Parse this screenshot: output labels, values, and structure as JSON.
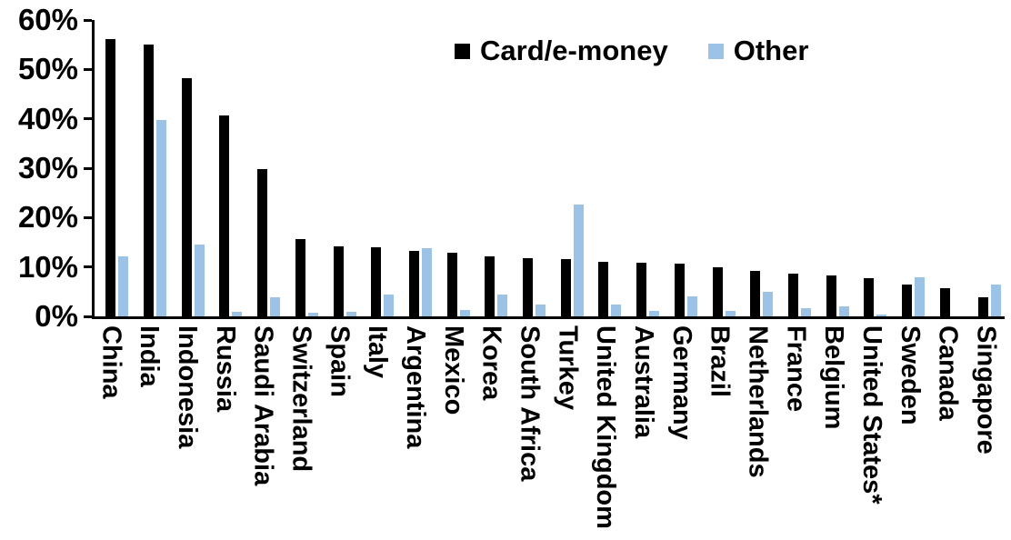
{
  "chart_data": {
    "type": "bar",
    "title": "",
    "categories": [
      "China",
      "India",
      "Indonesia",
      "Russia",
      "Saudi Arabia",
      "Switzerland",
      "Spain",
      "Italy",
      "Argentina",
      "Mexico",
      "Korea",
      "South Africa",
      "Turkey",
      "United Kingdom",
      "Australia",
      "Germany",
      "Brazil",
      "Netherlands",
      "France",
      "Belgium",
      "United States*",
      "Sweden",
      "Canada",
      "Singapore"
    ],
    "series": [
      {
        "name": "Card/e-money",
        "color": "#000000",
        "values": [
          56.2,
          55.0,
          48.2,
          40.6,
          29.9,
          15.6,
          14.2,
          14.0,
          13.3,
          12.9,
          12.2,
          11.8,
          11.6,
          11.1,
          10.8,
          10.6,
          9.9,
          9.2,
          8.6,
          8.3,
          7.8,
          6.5,
          5.8,
          3.8
        ]
      },
      {
        "name": "Other",
        "color": "#9CC2E5",
        "values": [
          12.2,
          39.8,
          14.5,
          1.0,
          3.8,
          0.7,
          1.0,
          4.5,
          13.8,
          1.3,
          4.5,
          2.4,
          22.6,
          2.4,
          1.1,
          4.0,
          1.1,
          5.0,
          1.6,
          2.0,
          0.3,
          7.9,
          0,
          6.5
        ]
      }
    ],
    "y_axis": {
      "min": 0,
      "max": 60,
      "step": 10,
      "tick_labels": [
        "0%",
        "10%",
        "20%",
        "30%",
        "40%",
        "50%",
        "60%"
      ]
    },
    "xlabel": "",
    "ylabel": "",
    "grid": false,
    "legend_position": "top-center"
  }
}
